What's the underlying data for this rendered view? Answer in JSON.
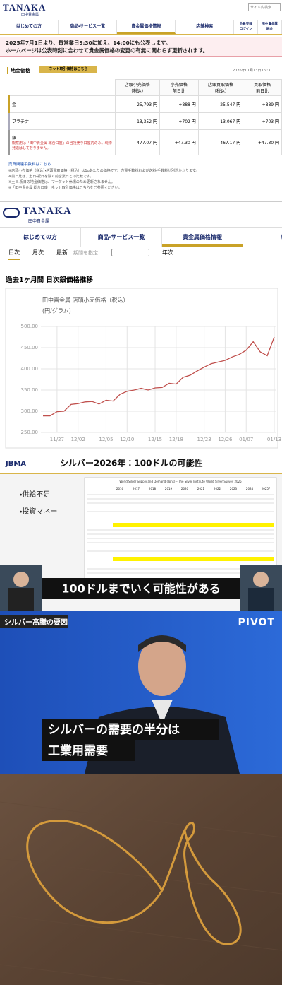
{
  "site_top": {
    "logo": "TANAKA",
    "logo_sub": "田中貴金属",
    "search": "サイト内検索",
    "nav": [
      "はじめての方",
      "商品・サービス一覧",
      "貴金属価格情報",
      "店舗検索",
      "会員登録\nログイン",
      "田中貴金属\n純金"
    ],
    "notice": [
      "2025年7月1日より、毎営業日9:30に加え、14:00にも公表します。",
      "ホームページは公表時刻に合わせて貴金属価格の変更の有無に関わらず更新されます。"
    ],
    "price_heading": "地金価格",
    "net_button": "ネット取引価格はこちら",
    "date": "2026年01月13日 09:3",
    "table": {
      "headers": [
        "店頭小売価格\n（税込）",
        "小売価格\n前日比",
        "店頭買取価格\n（税込）",
        "買取価格\n前日比"
      ],
      "rows": [
        [
          "金",
          "25,793 円",
          "+888 円",
          "25,547 円",
          "+889 円"
        ],
        [
          "プラチナ",
          "13,352 円",
          "+702 円",
          "13,067 円",
          "+703 円"
        ],
        [
          "銀",
          "477.07 円",
          "+47.30 円",
          "467.17 円",
          "+47.30 円"
        ]
      ],
      "silver_note": "観察用は「田中貴金属 総合口座」の当社売り口座内のみ。現物発送はしておりません。"
    },
    "fee_link": "売買関連手数料はこちら",
    "notes": [
      "※店頭小売価格（税込）・店頭買取価格（税込）は1gあたりの価格です。売買手数料および送料・手数料が別途かかります。",
      "※前日比は、土日・祝日を除く前営業日との比較です。",
      "※土日・祝日の地金価格は、マーケット休場のため更新されません。",
      "※「田中貴金属 総合口座」ネット取引価格はこちらをご参照ください。"
    ]
  },
  "site_chart_page": {
    "logo": "TANAKA",
    "logo_sub": "田中貴金属",
    "nav": [
      "はじめての方",
      "商品・サービス一覧",
      "貴金属価格情報",
      "店"
    ],
    "tabs": [
      "日次",
      "月次",
      "最新",
      "期間を指定",
      "年次"
    ],
    "heading": "過去1ヶ月間 日次銀価格推移"
  },
  "chart_data": {
    "type": "line",
    "title": "田中貴金属 店頭小売価格（税込）",
    "y_label": "(円/グラム)",
    "categories": [
      null,
      null,
      "11/27",
      null,
      null,
      "12/02",
      null,
      null,
      null,
      "12/05",
      null,
      null,
      "12/10",
      null,
      null,
      null,
      "12/15",
      null,
      null,
      "12/18",
      null,
      null,
      null,
      "12/23",
      null,
      null,
      "12/26",
      null,
      null,
      "01/07",
      null,
      null,
      null,
      "01/13"
    ],
    "values": [
      289,
      289,
      299,
      300,
      316,
      318,
      322,
      323,
      317,
      326,
      324,
      340,
      347,
      350,
      354,
      350,
      355,
      356,
      366,
      364,
      380,
      385,
      395,
      404,
      412,
      416,
      420,
      428,
      434,
      444,
      464,
      440,
      431,
      475
    ],
    "color": "#c0504d",
    "ylim": [
      250,
      500
    ],
    "yticks": [
      {
        "value": 250,
        "label": "250.00"
      },
      {
        "value": 300,
        "label": "300.00"
      },
      {
        "value": 350,
        "label": "350.00"
      },
      {
        "value": 400,
        "label": "400.00"
      },
      {
        "value": 450,
        "label": "450.00"
      },
      {
        "value": 500,
        "label": "500.00"
      }
    ],
    "grid": true
  },
  "slide": {
    "logo": "JBMA",
    "title": "シルバー2026年：100ドルの可能性",
    "bullets": [
      "・供給不足",
      "・投資マネー"
    ],
    "table_title": "World Silver Supply and Demand (Tons) – The Silver Institute World Silver Survey 2025",
    "years": [
      "2016",
      "2017",
      "2018",
      "2019",
      "2020",
      "2021",
      "2022",
      "2023",
      "2024",
      "2025F"
    ],
    "caption": "100ドルまでいく可能性がある"
  },
  "pivot": {
    "tag": "シルバー高騰の要因",
    "brand": "PIVOT",
    "captions": [
      "シルバーの需要の半分は",
      "工業用需要"
    ]
  }
}
